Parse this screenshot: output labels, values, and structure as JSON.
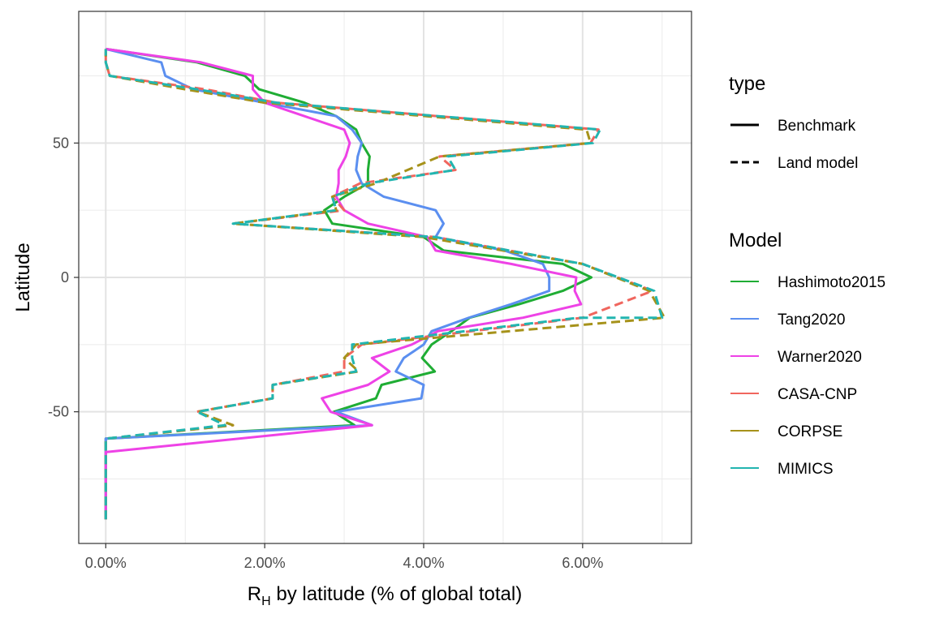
{
  "chart_data": {
    "type": "line",
    "orientation": "x-value, y-latitude",
    "xlabel_main": "R",
    "xlabel_sub": "H",
    "xlabel_rest": " by latitude (% of global total)",
    "ylabel": "Latitude",
    "xlim": [
      -0.0034,
      0.0737
    ],
    "ylim": [
      -99,
      99
    ],
    "x_ticks": [
      0,
      0.02,
      0.04,
      0.06
    ],
    "x_tick_labels": [
      "0.00%",
      "2.00%",
      "4.00%",
      "6.00%"
    ],
    "y_ticks": [
      -50,
      0,
      50
    ],
    "y_tick_labels": [
      "-50",
      "0",
      "50"
    ],
    "grid": true,
    "legend_placement": "right",
    "type_legend": {
      "title": "type",
      "entries": [
        {
          "label": "Benchmark",
          "dash": "solid"
        },
        {
          "label": "Land model",
          "dash": "dashed"
        }
      ]
    },
    "model_legend": {
      "title": "Model",
      "entries": [
        "Hashimoto2015",
        "Tang2020",
        "Warner2020",
        "CASA-CNP",
        "CORPSE",
        "MIMICS"
      ]
    },
    "series": [
      {
        "name": "Hashimoto2015",
        "type": "Benchmark",
        "color": "#1FAD34",
        "dashed": false,
        "points": [
          [
            0,
            -90
          ],
          [
            0,
            -85
          ],
          [
            0,
            -80
          ],
          [
            0,
            -75
          ],
          [
            0,
            -70
          ],
          [
            0,
            -65
          ],
          [
            0,
            -60
          ],
          [
            0.0313,
            -55
          ],
          [
            0.0287,
            -50
          ],
          [
            0.034,
            -45
          ],
          [
            0.0347,
            -40
          ],
          [
            0.0414,
            -35
          ],
          [
            0.0398,
            -30
          ],
          [
            0.041,
            -25
          ],
          [
            0.0435,
            -20
          ],
          [
            0.0458,
            -15
          ],
          [
            0.052,
            -10
          ],
          [
            0.0575,
            -5
          ],
          [
            0.0611,
            0
          ],
          [
            0.0575,
            5
          ],
          [
            0.0425,
            10
          ],
          [
            0.04,
            15
          ],
          [
            0.0285,
            20
          ],
          [
            0.0275,
            25
          ],
          [
            0.03,
            30
          ],
          [
            0.033,
            35
          ],
          [
            0.033,
            40
          ],
          [
            0.0332,
            45
          ],
          [
            0.0322,
            50
          ],
          [
            0.0315,
            55
          ],
          [
            0.029,
            60
          ],
          [
            0.025,
            65
          ],
          [
            0.0193,
            70
          ],
          [
            0.0175,
            75
          ],
          [
            0.0115,
            80
          ],
          [
            0,
            85
          ]
        ]
      },
      {
        "name": "Tang2020",
        "type": "Benchmark",
        "color": "#5B8FF0",
        "dashed": false,
        "points": [
          [
            0,
            -90
          ],
          [
            0,
            -85
          ],
          [
            0,
            -80
          ],
          [
            0,
            -75
          ],
          [
            0,
            -70
          ],
          [
            0,
            -65
          ],
          [
            0,
            -60
          ],
          [
            0.0335,
            -55
          ],
          [
            0.029,
            -50
          ],
          [
            0.0397,
            -45
          ],
          [
            0.04,
            -40
          ],
          [
            0.0365,
            -35
          ],
          [
            0.0375,
            -30
          ],
          [
            0.04,
            -25
          ],
          [
            0.041,
            -20
          ],
          [
            0.0457,
            -15
          ],
          [
            0.051,
            -10
          ],
          [
            0.0558,
            -5
          ],
          [
            0.0558,
            0
          ],
          [
            0.055,
            5
          ],
          [
            0.0502,
            10
          ],
          [
            0.0415,
            15
          ],
          [
            0.0425,
            20
          ],
          [
            0.0415,
            25
          ],
          [
            0.035,
            30
          ],
          [
            0.0322,
            35
          ],
          [
            0.0315,
            40
          ],
          [
            0.0317,
            45
          ],
          [
            0.0322,
            50
          ],
          [
            0.031,
            55
          ],
          [
            0.029,
            60
          ],
          [
            0.02,
            65
          ],
          [
            0.011,
            70
          ],
          [
            0.0075,
            75
          ],
          [
            0.007,
            80
          ],
          [
            0,
            85
          ]
        ]
      },
      {
        "name": "Warner2020",
        "type": "Benchmark",
        "color": "#EE42E6",
        "dashed": false,
        "points": [
          [
            0,
            -90
          ],
          [
            0,
            -85
          ],
          [
            0,
            -80
          ],
          [
            0,
            -75
          ],
          [
            0,
            -70
          ],
          [
            0,
            -65
          ],
          [
            0.0335,
            -55
          ],
          [
            0.0283,
            -50
          ],
          [
            0.0272,
            -45
          ],
          [
            0.033,
            -40
          ],
          [
            0.0357,
            -35
          ],
          [
            0.0335,
            -30
          ],
          [
            0.0385,
            -25
          ],
          [
            0.0418,
            -20
          ],
          [
            0.0525,
            -15
          ],
          [
            0.0598,
            -10
          ],
          [
            0.059,
            -5
          ],
          [
            0.0592,
            0
          ],
          [
            0.051,
            5
          ],
          [
            0.0415,
            10
          ],
          [
            0.0405,
            15
          ],
          [
            0.033,
            20
          ],
          [
            0.03,
            25
          ],
          [
            0.029,
            30
          ],
          [
            0.0293,
            35
          ],
          [
            0.0293,
            40
          ],
          [
            0.0302,
            45
          ],
          [
            0.0307,
            50
          ],
          [
            0.03,
            55
          ],
          [
            0.025,
            60
          ],
          [
            0.02,
            65
          ],
          [
            0.0185,
            70
          ],
          [
            0.0185,
            75
          ],
          [
            0.012,
            80
          ],
          [
            0,
            85
          ]
        ]
      },
      {
        "name": "CASA-CNP",
        "type": "Land model",
        "color": "#F0665E",
        "dashed": true,
        "points": [
          [
            0,
            -90
          ],
          [
            0,
            -60
          ],
          [
            0.016,
            -55
          ],
          [
            0.0114,
            -50
          ],
          [
            0.021,
            -45
          ],
          [
            0.021,
            -40
          ],
          [
            0.03,
            -35
          ],
          [
            0.03,
            -30
          ],
          [
            0.0322,
            -25
          ],
          [
            0.06,
            -15
          ],
          [
            0.0688,
            -5
          ],
          [
            0.06,
            5
          ],
          [
            0.0415,
            15
          ],
          [
            0.016,
            20
          ],
          [
            0.03,
            25
          ],
          [
            0.0285,
            30
          ],
          [
            0.032,
            35
          ],
          [
            0.044,
            40
          ],
          [
            0.042,
            45
          ],
          [
            0.061,
            50
          ],
          [
            0.062,
            55
          ],
          [
            0.0215,
            65
          ],
          [
            0.0125,
            70
          ],
          [
            0.0005,
            75
          ],
          [
            0,
            80
          ],
          [
            0,
            85
          ]
        ]
      },
      {
        "name": "CORPSE",
        "type": "Land model",
        "color": "#A6921A",
        "dashed": true,
        "points": [
          [
            0,
            -90
          ],
          [
            0,
            -60
          ],
          [
            0.016,
            -55
          ],
          [
            0.0115,
            -50
          ],
          [
            0.021,
            -45
          ],
          [
            0.021,
            -40
          ],
          [
            0.0318,
            -35
          ],
          [
            0.03,
            -30
          ],
          [
            0.0315,
            -25
          ],
          [
            0.0703,
            -15
          ],
          [
            0.0684,
            -5
          ],
          [
            0.06,
            5
          ],
          [
            0.04,
            15
          ],
          [
            0.016,
            20
          ],
          [
            0.029,
            25
          ],
          [
            0.0285,
            30
          ],
          [
            0.034,
            35
          ],
          [
            0.042,
            45
          ],
          [
            0.061,
            50
          ],
          [
            0.0605,
            55
          ],
          [
            0.02,
            65
          ],
          [
            0.01,
            70
          ],
          [
            0.0005,
            75
          ],
          [
            0,
            80
          ],
          [
            0,
            85
          ]
        ]
      },
      {
        "name": "MIMICS",
        "type": "Land model",
        "color": "#22B5B0",
        "dashed": true,
        "points": [
          [
            0,
            -90
          ],
          [
            0,
            -60
          ],
          [
            0.015,
            -55
          ],
          [
            0.0115,
            -50
          ],
          [
            0.021,
            -45
          ],
          [
            0.021,
            -40
          ],
          [
            0.0315,
            -35
          ],
          [
            0.031,
            -30
          ],
          [
            0.031,
            -25
          ],
          [
            0.0595,
            -15
          ],
          [
            0.07,
            -15
          ],
          [
            0.069,
            -5
          ],
          [
            0.06,
            5
          ],
          [
            0.0415,
            15
          ],
          [
            0.016,
            20
          ],
          [
            0.029,
            25
          ],
          [
            0.0285,
            30
          ],
          [
            0.033,
            35
          ],
          [
            0.044,
            40
          ],
          [
            0.043,
            45
          ],
          [
            0.0613,
            50
          ],
          [
            0.0622,
            55
          ],
          [
            0.0215,
            65
          ],
          [
            0.0115,
            70
          ],
          [
            0.0005,
            75
          ],
          [
            0,
            80
          ],
          [
            0,
            85
          ]
        ]
      }
    ]
  }
}
